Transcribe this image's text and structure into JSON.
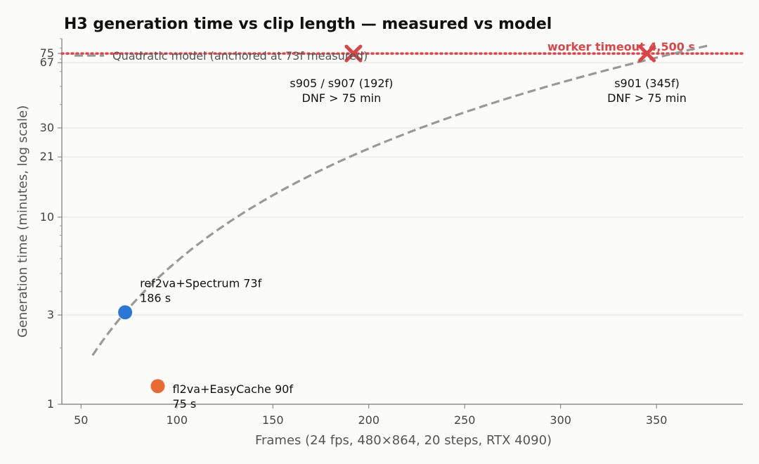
{
  "chart_data": {
    "type": "scatter",
    "title": "H3 generation time vs clip length — measured vs model",
    "xlabel": "Frames (24 fps, 480×864, 20 steps, RTX 4090)",
    "ylabel": "Generation time (minutes, log scale)",
    "xlim": [
      40,
      395
    ],
    "ylim": [
      1,
      90
    ],
    "y_scale": "log",
    "x_ticks": [
      50,
      100,
      150,
      200,
      250,
      300,
      350
    ],
    "y_ticks": [
      1,
      3,
      10,
      21,
      30,
      67,
      75
    ],
    "grid": "horizontal",
    "legend": {
      "position": "top-left",
      "entries": [
        "Quadratic model (anchored at 73f measured)"
      ]
    },
    "model_curve": {
      "name": "Quadratic model (anchored at 73f measured)",
      "x_range": [
        56,
        378
      ],
      "anchor": {
        "x": 73,
        "y": 3.1
      },
      "color": "#999999"
    },
    "timeout_line": {
      "y": 75,
      "label": "worker timeout  4,500 s",
      "color": "#d9464a"
    },
    "points": [
      {
        "x": 73,
        "y": 3.1,
        "label_line1": "ref2va+Spectrum 73f",
        "label_line2": "186 s",
        "color": "#2a78d4",
        "marker": "circle"
      },
      {
        "x": 90,
        "y": 1.25,
        "label_line1": "fl2va+EasyCache 90f",
        "label_line2": "75 s",
        "color": "#ea6a33",
        "marker": "circle"
      },
      {
        "x": 192,
        "y": 75,
        "label_line1": "s905 / s907 (192f)",
        "label_line2": "DNF > 75 min",
        "color": "#d9464a",
        "marker": "x"
      },
      {
        "x": 345,
        "y": 75,
        "label_line1": "s901 (345f)",
        "label_line2": "DNF > 75 min",
        "color": "#d9464a",
        "marker": "x"
      }
    ]
  }
}
